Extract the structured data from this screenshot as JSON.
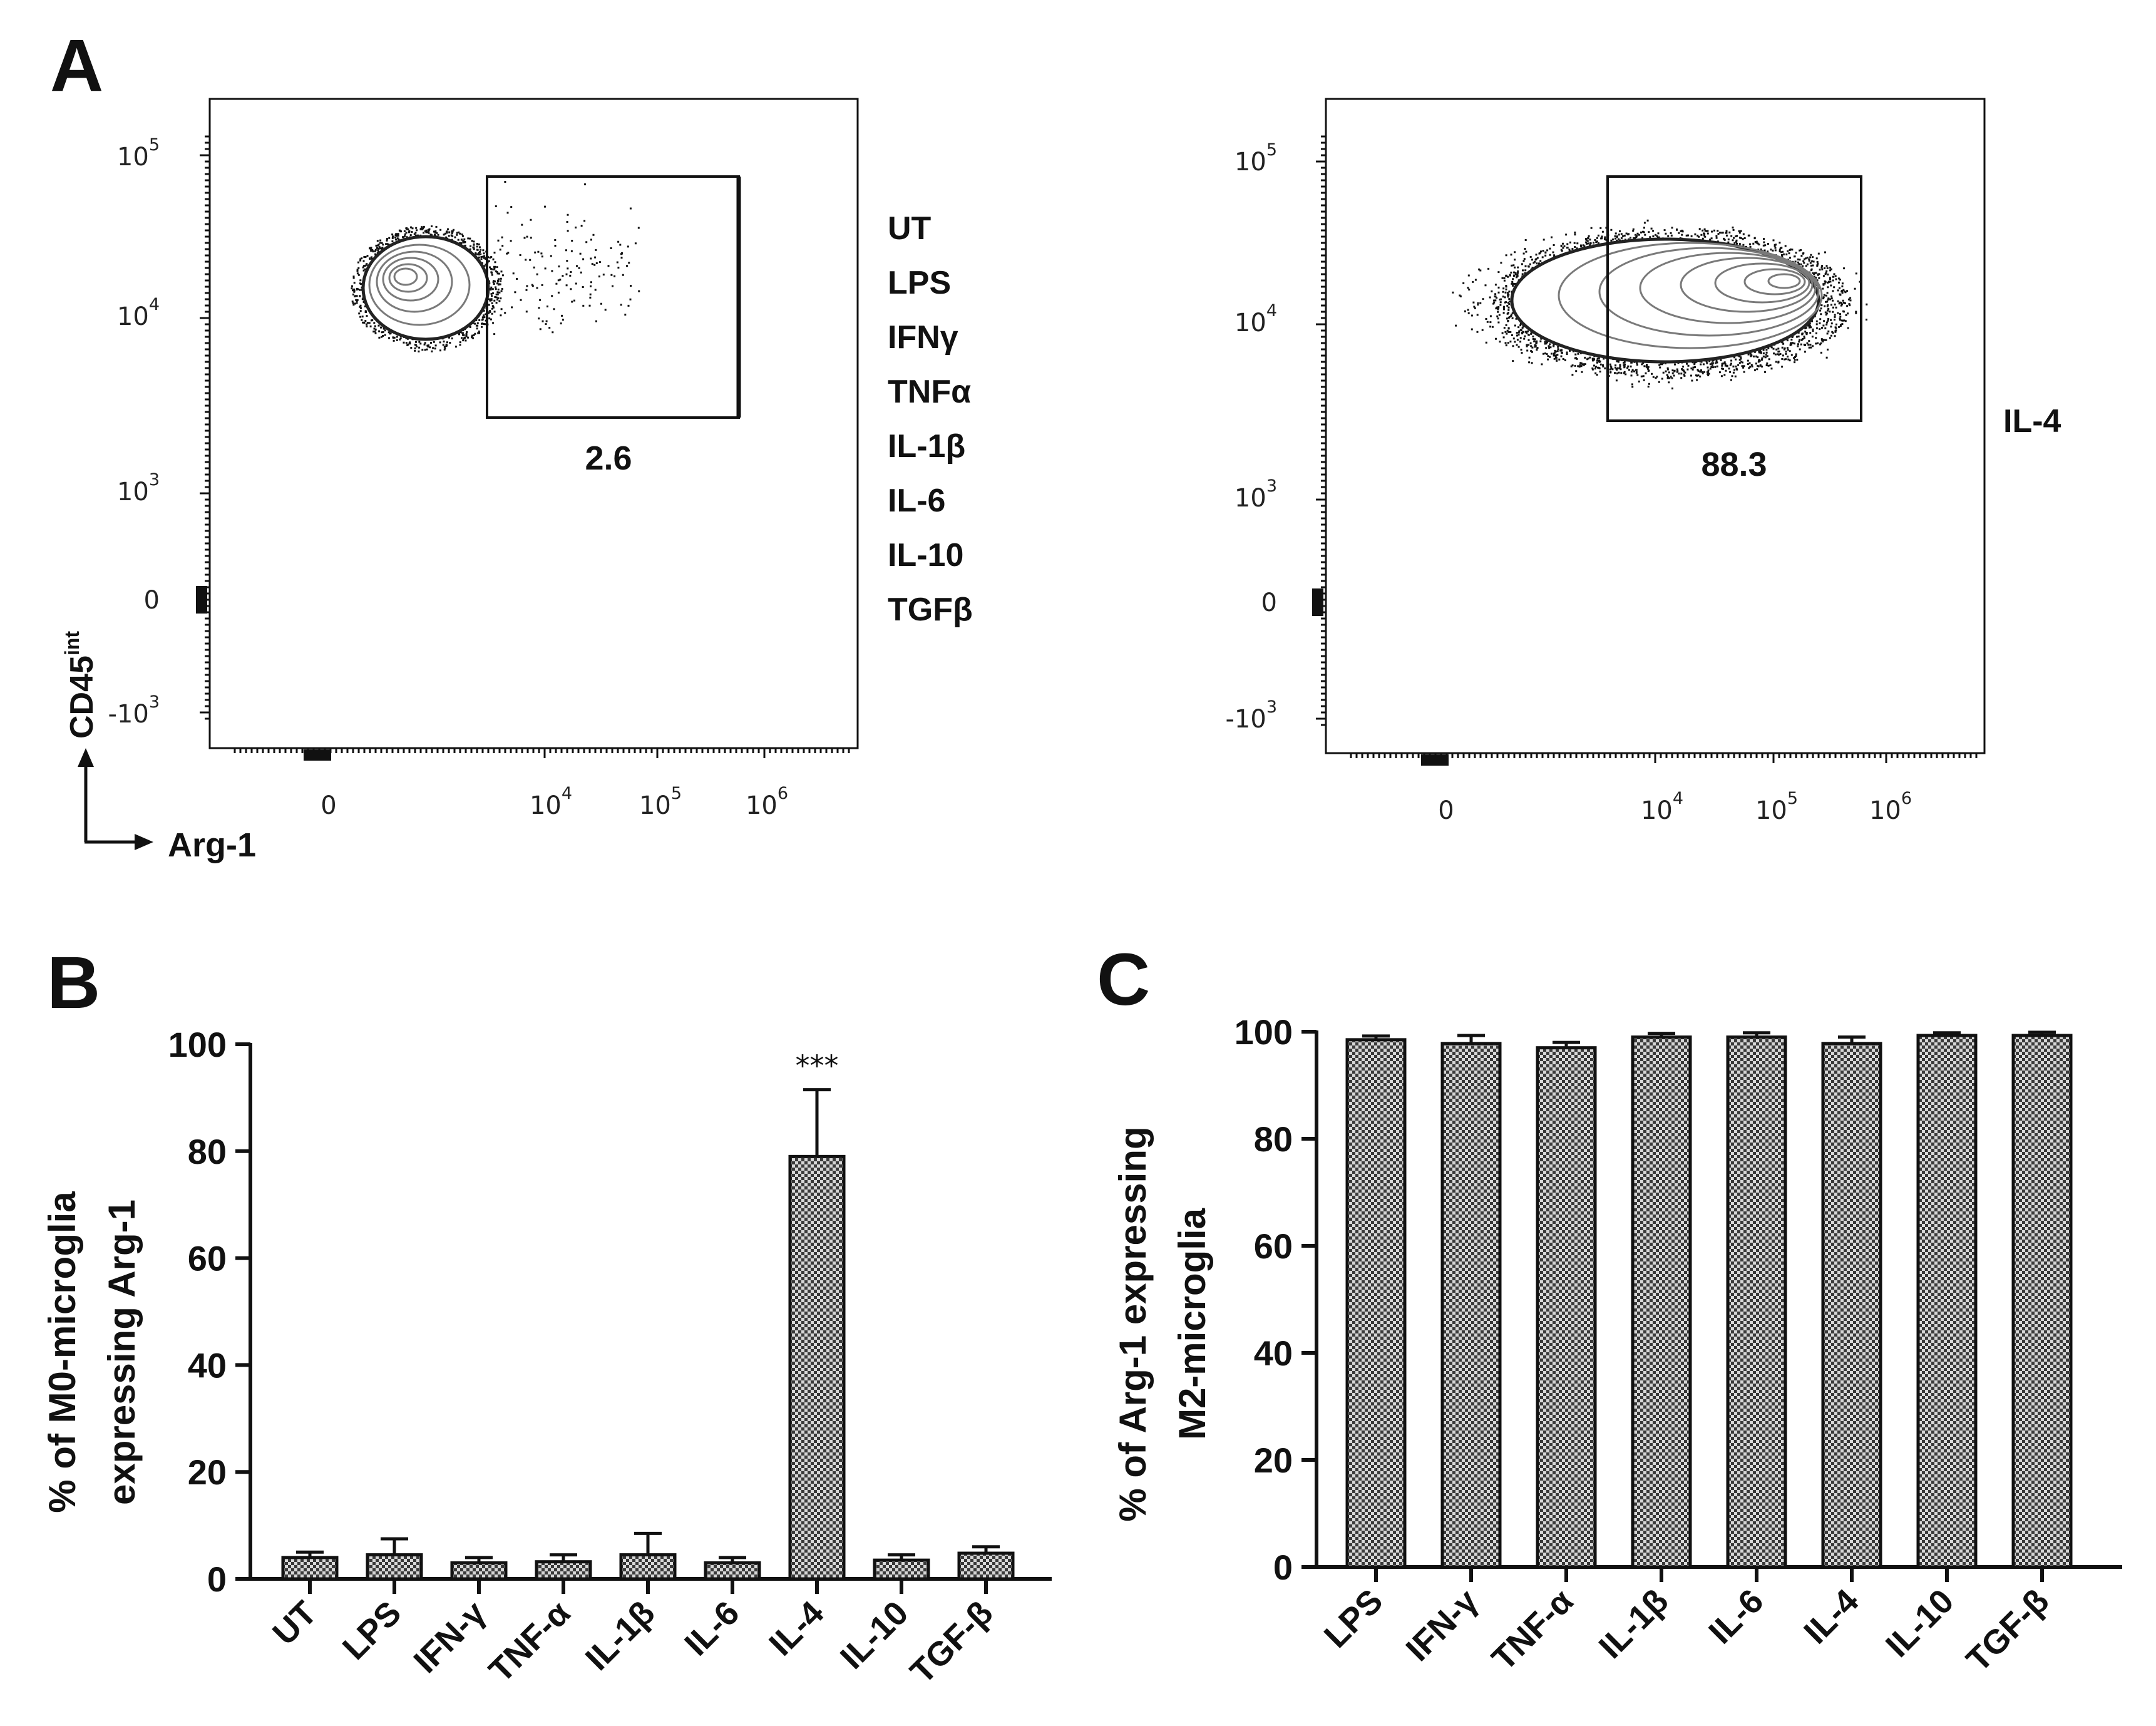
{
  "panels": {
    "A": {
      "letter": "A",
      "y_axis_label": "CD45",
      "y_axis_label_sup": "int",
      "x_axis_label": "Arg-1",
      "y_ticks": [
        {
          "base": "10",
          "exp": "5"
        },
        {
          "base": "10",
          "exp": "4"
        },
        {
          "base": "10",
          "exp": "3"
        },
        {
          "base": "0",
          "exp": ""
        },
        {
          "base": "-10",
          "exp": "3"
        }
      ],
      "x_ticks": [
        {
          "base": "0",
          "exp": ""
        },
        {
          "base": "10",
          "exp": "4"
        },
        {
          "base": "10",
          "exp": "5"
        },
        {
          "base": "10",
          "exp": "6"
        }
      ],
      "plots": [
        {
          "gate_value": "2.6",
          "treatments": [
            "UT",
            "LPS",
            "IFNγ",
            "TNFα",
            "IL-1β",
            "IL-6",
            "IL-10",
            "TGFβ"
          ]
        },
        {
          "gate_value": "88.3",
          "treatments": [
            "IL-4"
          ]
        }
      ]
    },
    "B": {
      "letter": "B",
      "y_label_line1": "% of M0-microglia",
      "y_label_line2": "expressing Arg-1"
    },
    "C": {
      "letter": "C",
      "y_label_line1": "% of Arg-1 expressing",
      "y_label_line2": "M2-microglia"
    }
  },
  "chart_data": [
    {
      "panel": "B",
      "type": "bar",
      "categories": [
        "UT",
        "LPS",
        "IFN-γ",
        "TNF-α",
        "IL-1β",
        "IL-6",
        "IL-4",
        "IL-10",
        "TGF-β"
      ],
      "values": [
        4,
        4.5,
        3,
        3.2,
        4.5,
        3,
        79,
        3.5,
        4.8
      ],
      "errors": [
        1,
        3,
        1,
        1.3,
        4,
        1,
        12.5,
        1,
        1.2
      ],
      "annotations": [
        {
          "category": "IL-4",
          "text": "***"
        }
      ],
      "ylabel": "% of M0-microglia expressing Arg-1",
      "ylim": [
        0,
        100
      ],
      "yticks": [
        0,
        20,
        40,
        60,
        80,
        100
      ]
    },
    {
      "panel": "C",
      "type": "bar",
      "categories": [
        "LPS",
        "IFN-γ",
        "TNF-α",
        "IL-1β",
        "IL-6",
        "IL-4",
        "IL-10",
        "TGF-β"
      ],
      "values": [
        98.5,
        97.8,
        97,
        99,
        99,
        97.8,
        99.3,
        99.3
      ],
      "errors": [
        0.7,
        1.5,
        1,
        0.7,
        0.8,
        1.2,
        0.5,
        0.6
      ],
      "ylabel": "% of Arg-1 expressing M2-microglia",
      "ylim": [
        0,
        100
      ],
      "yticks": [
        0,
        20,
        40,
        60,
        80,
        100
      ]
    }
  ]
}
